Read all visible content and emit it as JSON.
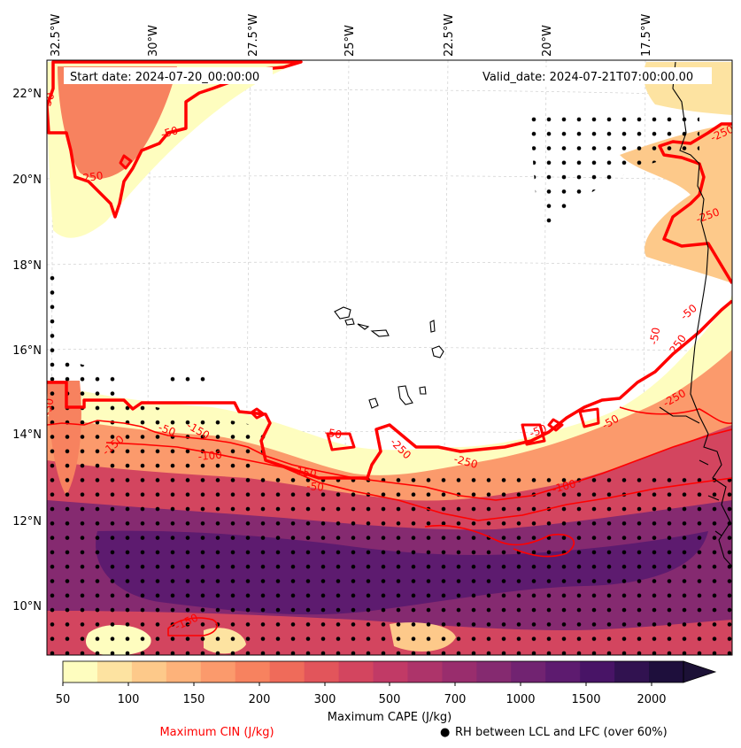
{
  "header": {
    "start_date": "Start date: 2024-07-20_00:00:00",
    "valid_date": "Valid_date: 2024-07-21T07:00:00.00"
  },
  "axes": {
    "lon_labels": [
      "32.5°W",
      "30°W",
      "27.5°W",
      "25°W",
      "22.5°W",
      "20°W",
      "17.5°W"
    ],
    "lat_labels": [
      "22°N",
      "20°N",
      "18°N",
      "16°N",
      "14°N",
      "12°N",
      "10°N"
    ]
  },
  "contour_labels": [
    "-50",
    "-250",
    "-50",
    "-250",
    "-150",
    "-50",
    "-100",
    "-150",
    "-50",
    "-250",
    "-50",
    "-250",
    "-150",
    "-100",
    "-50",
    "-50",
    "-250",
    "-250",
    "-50",
    "-50",
    "-250",
    "-150",
    "-50"
  ],
  "colorbar": {
    "ticks": [
      "50",
      "100",
      "150",
      "200",
      "300",
      "500",
      "700",
      "1000",
      "1500",
      "2000"
    ],
    "label": "Maximum CAPE (J/kg)",
    "colors": [
      "#fefdbf",
      "#fde3a1",
      "#fdc98a",
      "#fdb27a",
      "#fb9a6c",
      "#f7825f",
      "#ef6b5a",
      "#e2555b",
      "#d3455f",
      "#c13a66",
      "#ad346a",
      "#992d6d",
      "#852a70",
      "#712371",
      "#5d1b6f",
      "#481466",
      "#311250",
      "#1e0f3c"
    ],
    "extend_color": "#1c1136"
  },
  "legend": {
    "cin_label": "Maximum CIN (J/kg)",
    "cin_color": "#ff0000",
    "rh_marker": "●",
    "rh_label": "RH between LCL and LFC (over 60%)"
  }
}
